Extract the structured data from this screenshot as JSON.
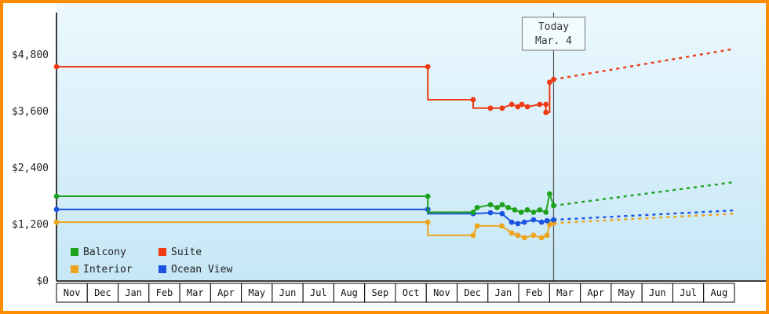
{
  "colors": {
    "frame_border": "#ff8c00",
    "plot_bg_top": "#ecf8fe",
    "plot_bg_bottom": "#c6e7f6",
    "axis": "#000000",
    "month_cell_bg": "#ffffff",
    "today_line": "#555555",
    "today_box_bg": "#f2fbfe",
    "today_box_border": "#777777"
  },
  "chart_data": {
    "type": "line",
    "y_axis": {
      "tick_labels": [
        "$0",
        "$1,200",
        "$2,400",
        "$3,600",
        "$4,800"
      ],
      "tick_values": [
        0,
        1200,
        2400,
        3600,
        4800
      ],
      "max": 5700
    },
    "x_axis": {
      "month_labels": [
        "Nov",
        "Dec",
        "Jan",
        "Feb",
        "Mar",
        "Apr",
        "May",
        "Jun",
        "Jul",
        "Aug",
        "Sep",
        "Oct",
        "Nov",
        "Dec",
        "Jan",
        "Feb",
        "Mar",
        "Apr",
        "May",
        "Jun",
        "Jul",
        "Aug"
      ]
    },
    "today_marker": {
      "line1": "Today",
      "line2": "Mar. 4",
      "x_months": 16.13
    },
    "series": [
      {
        "name": "Interior",
        "color": "#eda41c",
        "points": [
          [
            0,
            1250,
            1
          ],
          [
            12.05,
            1250,
            1
          ],
          [
            12.05,
            970,
            0
          ],
          [
            13.52,
            970,
            1
          ],
          [
            13.65,
            1170,
            1
          ],
          [
            14.45,
            1170,
            1
          ],
          [
            14.77,
            1020,
            1
          ],
          [
            14.97,
            970,
            1
          ],
          [
            15.18,
            920,
            1
          ],
          [
            15.48,
            970,
            1
          ],
          [
            15.74,
            920,
            1
          ],
          [
            15.92,
            970,
            1
          ],
          [
            16.0,
            1200,
            1
          ],
          [
            16.13,
            1230,
            1
          ]
        ],
        "projection": [
          [
            16.13,
            1230
          ],
          [
            22,
            1430
          ]
        ]
      },
      {
        "name": "Ocean View",
        "color": "#1b53e0",
        "points": [
          [
            0,
            1520,
            1
          ],
          [
            12.05,
            1520,
            1
          ],
          [
            12.05,
            1430,
            0
          ],
          [
            13.52,
            1430,
            1
          ],
          [
            14.08,
            1450,
            1
          ],
          [
            14.46,
            1430,
            1
          ],
          [
            14.77,
            1250,
            1
          ],
          [
            14.97,
            1220,
            1
          ],
          [
            15.18,
            1250,
            1
          ],
          [
            15.48,
            1300,
            1
          ],
          [
            15.74,
            1250,
            1
          ],
          [
            15.92,
            1280,
            1
          ],
          [
            16.13,
            1300,
            1
          ]
        ],
        "projection": [
          [
            16.13,
            1300
          ],
          [
            22,
            1500
          ]
        ]
      },
      {
        "name": "Balcony",
        "color": "#1ea21e",
        "points": [
          [
            0,
            1800,
            1
          ],
          [
            12.05,
            1800,
            1
          ],
          [
            12.05,
            1460,
            0
          ],
          [
            13.52,
            1460,
            1
          ],
          [
            13.65,
            1560,
            1
          ],
          [
            14.08,
            1620,
            1
          ],
          [
            14.3,
            1560,
            1
          ],
          [
            14.46,
            1620,
            1
          ],
          [
            14.66,
            1560,
            1
          ],
          [
            14.87,
            1510,
            1
          ],
          [
            15.08,
            1460,
            1
          ],
          [
            15.28,
            1510,
            1
          ],
          [
            15.48,
            1460,
            1
          ],
          [
            15.68,
            1510,
            1
          ],
          [
            15.88,
            1460,
            1
          ],
          [
            16.0,
            1850,
            1
          ],
          [
            16.13,
            1600,
            1
          ]
        ],
        "projection": [
          [
            16.13,
            1600
          ],
          [
            22,
            2100
          ]
        ]
      },
      {
        "name": "Suite",
        "color": "#ee3b14",
        "points": [
          [
            0,
            4550,
            1
          ],
          [
            12.05,
            4550,
            1
          ],
          [
            12.05,
            3850,
            0
          ],
          [
            13.52,
            3850,
            1
          ],
          [
            13.52,
            3670,
            0
          ],
          [
            14.08,
            3670,
            1
          ],
          [
            14.46,
            3670,
            1
          ],
          [
            14.77,
            3750,
            1
          ],
          [
            14.97,
            3700,
            1
          ],
          [
            15.1,
            3750,
            1
          ],
          [
            15.28,
            3700,
            1
          ],
          [
            15.68,
            3750,
            1
          ],
          [
            15.88,
            3750,
            1
          ],
          [
            15.88,
            3580,
            1
          ],
          [
            16.0,
            3580,
            0
          ],
          [
            16.0,
            4220,
            1
          ],
          [
            16.13,
            4280,
            1
          ]
        ],
        "projection": [
          [
            16.13,
            4280
          ],
          [
            22,
            4930
          ]
        ]
      }
    ],
    "legend": {
      "position": "bottom-left",
      "items": [
        {
          "label": "Balcony",
          "color": "#1ea21e"
        },
        {
          "label": "Suite",
          "color": "#ee3b14"
        },
        {
          "label": "Interior",
          "color": "#eda41c"
        },
        {
          "label": "Ocean View",
          "color": "#1b53e0"
        }
      ]
    }
  }
}
